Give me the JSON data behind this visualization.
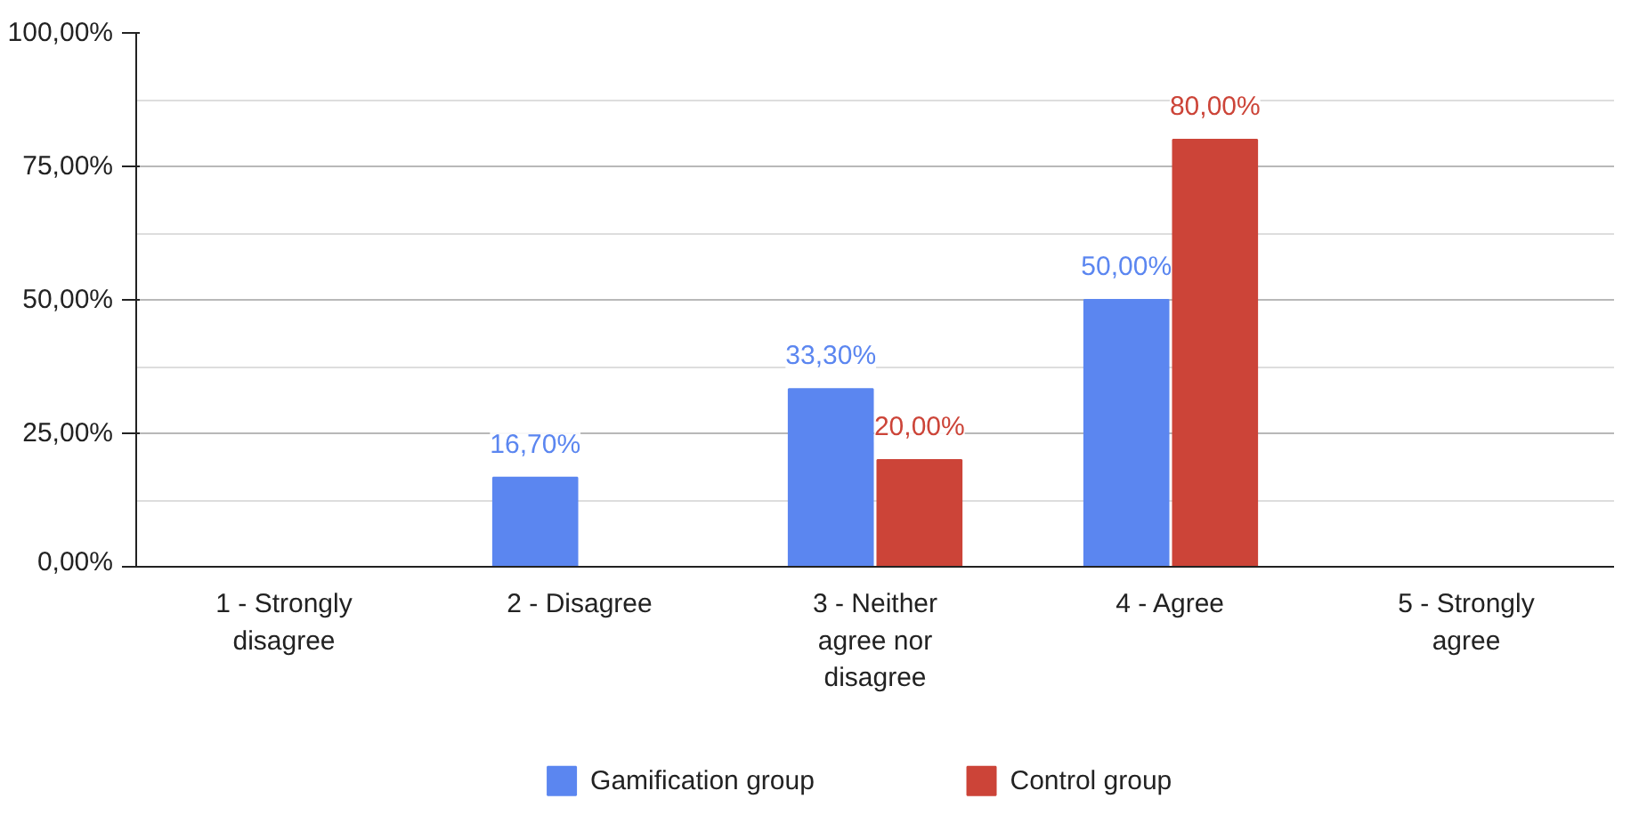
{
  "chart_data": {
    "type": "bar",
    "categories": [
      "1 - Strongly disagree",
      "2 - Disagree",
      "3 - Neither agree nor disagree",
      "4 - Agree",
      "5 - Strongly agree"
    ],
    "series": [
      {
        "name": "Gamification group",
        "color": "#5b86f0",
        "values": [
          null,
          16.7,
          33.3,
          50,
          null
        ],
        "value_labels": [
          null,
          "16,70%",
          "33,30%",
          "50,00%",
          null
        ]
      },
      {
        "name": "Control group",
        "color": "#cc4438",
        "values": [
          null,
          null,
          20,
          80,
          null
        ],
        "value_labels": [
          null,
          null,
          "20,00%",
          "80,00%",
          null
        ]
      }
    ],
    "ylim": [
      0,
      100
    ],
    "yticks": [
      {
        "value": 0,
        "label": "0,00%"
      },
      {
        "value": 25,
        "label": "25,00%"
      },
      {
        "value": 50,
        "label": "50,00%"
      },
      {
        "value": 75,
        "label": "75,00%"
      },
      {
        "value": 100,
        "label": "100,00%"
      }
    ],
    "grid": "y",
    "legend": "bottom"
  }
}
